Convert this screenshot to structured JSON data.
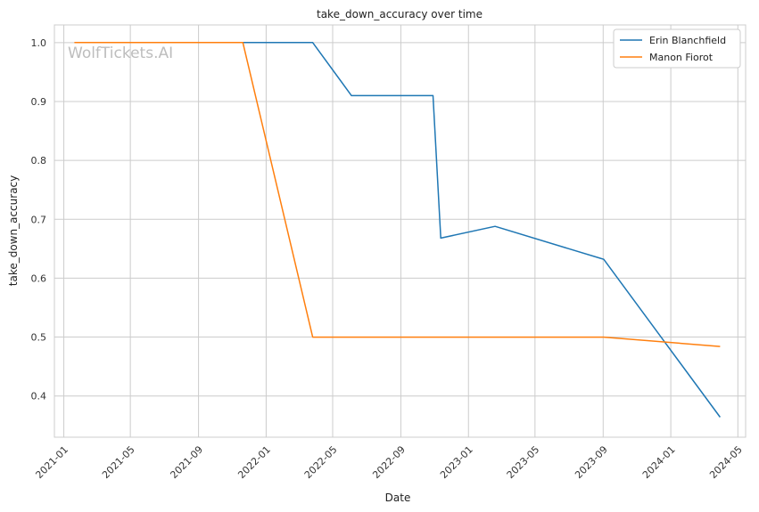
{
  "watermark": "WolfTickets.AI",
  "chart_data": {
    "type": "line",
    "title": "take_down_accuracy over time",
    "xlabel": "Date",
    "ylabel": "take_down_accuracy",
    "x_ticks": [
      "2021-01",
      "2021-05",
      "2021-09",
      "2022-01",
      "2022-05",
      "2022-09",
      "2023-01",
      "2023-05",
      "2023-09",
      "2024-01",
      "2024-05"
    ],
    "y_ticks": [
      0.4,
      0.5,
      0.6,
      0.7,
      0.8,
      0.9,
      1.0
    ],
    "xlim": [
      "2020-12-15",
      "2024-05-15"
    ],
    "ylim": [
      0.33,
      1.03
    ],
    "grid": true,
    "legend_position": "top-right",
    "colors": {
      "Erin Blanchfield": "#1f77b4",
      "Manon Fiorot": "#ff7f0e"
    },
    "series": [
      {
        "name": "Erin Blanchfield",
        "x": [
          "2021-09-10",
          "2022-03-26",
          "2022-06-04",
          "2022-10-29",
          "2022-11-12",
          "2023-02-18",
          "2023-08-26",
          "2023-09-02",
          "2024-03-30"
        ],
        "y": [
          1.0,
          1.0,
          0.91,
          0.91,
          0.668,
          0.688,
          0.634,
          0.632,
          0.364
        ]
      },
      {
        "name": "Manon Fiorot",
        "x": [
          "2021-01-20",
          "2021-11-20",
          "2022-03-26",
          "2023-09-02",
          "2024-03-30"
        ],
        "y": [
          1.0,
          1.0,
          0.5,
          0.5,
          0.484
        ]
      }
    ]
  }
}
